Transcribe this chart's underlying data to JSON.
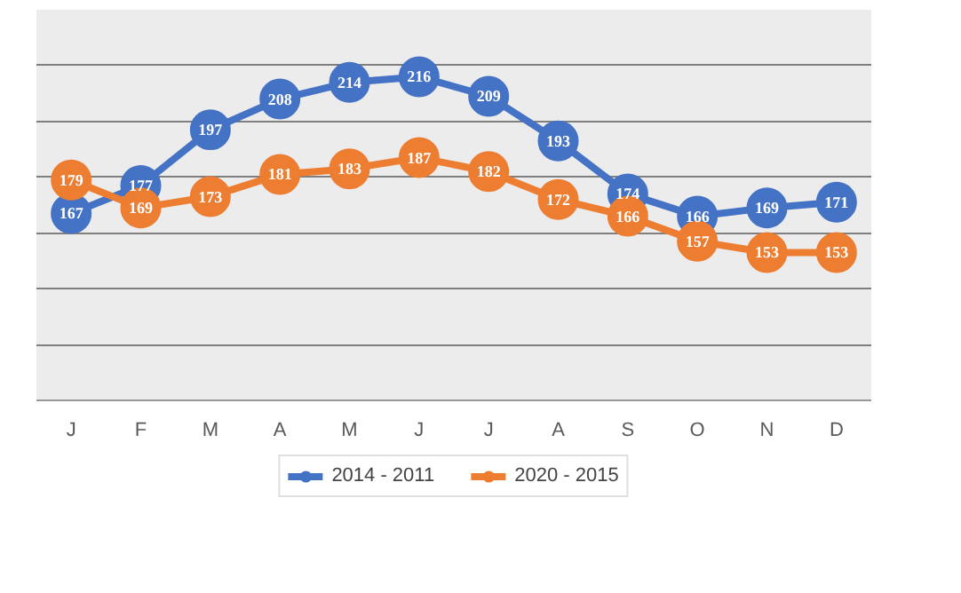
{
  "chart_data": {
    "type": "line",
    "categories": [
      "J",
      "F",
      "M",
      "A",
      "M",
      "J",
      "J",
      "A",
      "S",
      "O",
      "N",
      "D"
    ],
    "series": [
      {
        "name": "2014 - 2011",
        "color": "#4472c4",
        "values": [
          167,
          177,
          197,
          208,
          214,
          216,
          209,
          193,
          174,
          166,
          169,
          171
        ]
      },
      {
        "name": "2020 - 2015",
        "color": "#ed7d31",
        "values": [
          179,
          169,
          173,
          181,
          183,
          187,
          182,
          172,
          166,
          157,
          153,
          153
        ]
      }
    ],
    "ylim": [
      100,
      240
    ],
    "yticks": [
      {
        "value": 100,
        "label": null
      },
      {
        "value": 120,
        "label": null
      },
      {
        "value": 140,
        "label": null
      },
      {
        "value": 160,
        "label": null
      },
      {
        "value": 180,
        "label": null
      },
      {
        "value": 200,
        "label": null
      },
      {
        "value": 220,
        "label": null
      },
      {
        "value": 240,
        "label": null
      }
    ],
    "tick_labels": "x",
    "grid": "y",
    "legend": "bottom",
    "marker": "circle",
    "line_style": "solid",
    "data_labels": true
  }
}
